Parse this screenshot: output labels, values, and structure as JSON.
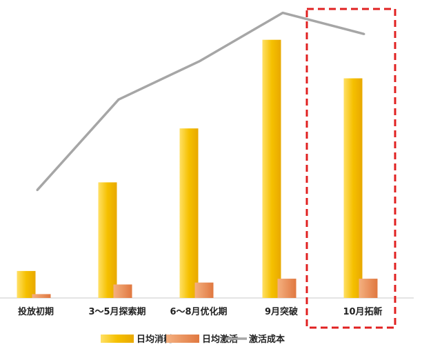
{
  "chart_data": {
    "type": "bar",
    "categories": [
      "投放初期",
      "3～5月探索期",
      "6～8月优化期",
      "9月突破",
      "10月拓新"
    ],
    "series": [
      {
        "name": "日均消耗",
        "type": "bar",
        "values": [
          14,
          60,
          88,
          134,
          114
        ],
        "color": "#F5C000"
      },
      {
        "name": "日均激活",
        "type": "bar",
        "values": [
          2,
          7,
          8,
          10,
          10
        ],
        "color": "#E8945A"
      },
      {
        "name": "激活成本",
        "type": "line",
        "values": [
          56,
          103,
          123,
          148,
          137
        ],
        "color": "#A6A6A6"
      }
    ],
    "title": "",
    "xlabel": "",
    "ylabel": "",
    "ylim": [
      0,
      150
    ],
    "grid": false,
    "axis_ticks_visible": false,
    "legend_position": "bottom-center",
    "highlight": {
      "category": "10月拓新",
      "style": "dashed-box",
      "color": "#E02020"
    }
  }
}
